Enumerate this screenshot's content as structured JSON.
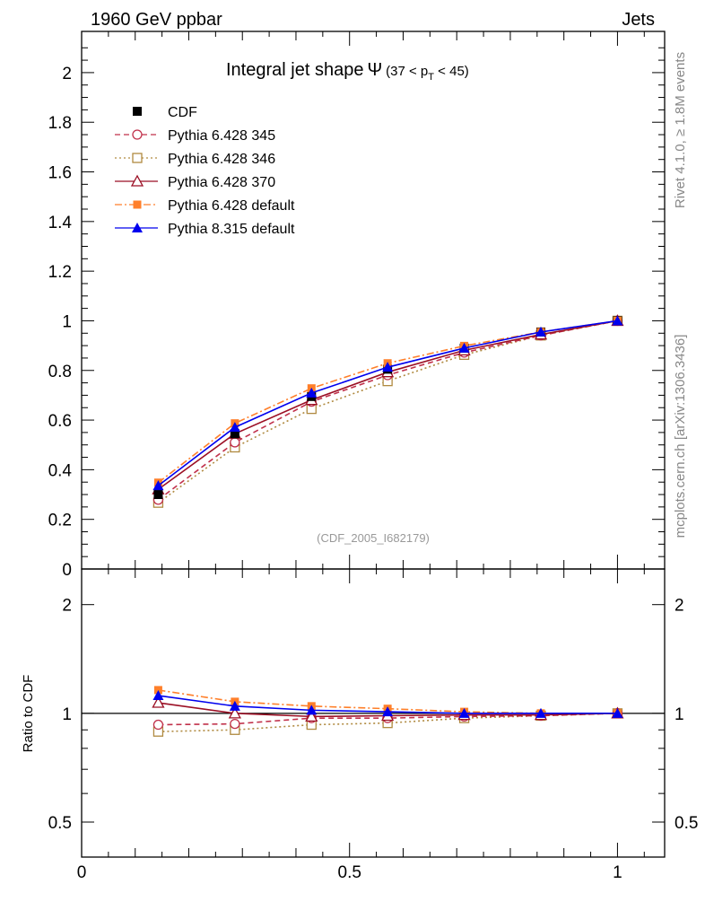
{
  "header": {
    "energy": "1960 GeV ppbar",
    "process": "Jets"
  },
  "side": {
    "rivet": "Rivet 4.1.0, ≥ 1.8M events",
    "mcplots": "mcplots.cern.ch [arXiv:1306.3436]"
  },
  "chart_data": [
    {
      "type": "line",
      "title": "Integral jet shape Ψ (37 < pT < 45)",
      "title_main": "Integral jet shape",
      "title_psi": "Ψ",
      "title_range": "(37 < p",
      "title_sub": "T",
      "title_end": " < 45)",
      "analysis": "(CDF_2005_I682179)",
      "x": [
        0.143,
        0.286,
        0.429,
        0.571,
        0.714,
        0.857,
        1.0
      ],
      "xlim": [
        0,
        1.088
      ],
      "ylim": [
        0,
        2.166
      ],
      "yticks": [
        "0",
        "0.2",
        "0.4",
        "0.6",
        "0.8",
        "1",
        "1.2",
        "1.4",
        "1.6",
        "1.8",
        "2"
      ],
      "legend_position": "top-left",
      "series": [
        {
          "name": "CDF",
          "color": "#000000",
          "marker": "filled-square",
          "dash": "none",
          "values": [
            0.3,
            0.545,
            0.695,
            0.805,
            0.89,
            0.955,
            1.0
          ]
        },
        {
          "name": "Pythia 6.428 345",
          "color": "#c0304a",
          "marker": "open-circle",
          "dash": "6,4",
          "values": [
            0.279,
            0.51,
            0.674,
            0.781,
            0.872,
            0.941,
            1.0
          ]
        },
        {
          "name": "Pythia 6.428 346",
          "color": "#b08a40",
          "marker": "open-square",
          "dash": "2,3",
          "values": [
            0.267,
            0.49,
            0.645,
            0.757,
            0.863,
            0.941,
            1.0
          ]
        },
        {
          "name": "Pythia 6.428 370",
          "color": "#9b0f24",
          "marker": "open-triangle",
          "dash": "none",
          "values": [
            0.321,
            0.545,
            0.681,
            0.793,
            0.881,
            0.945,
            1.0
          ]
        },
        {
          "name": "Pythia 6.428 default",
          "color": "#ff7f2a",
          "marker": "filled-square-small",
          "dash": "8,3,2,3",
          "values": [
            0.348,
            0.587,
            0.728,
            0.829,
            0.899,
            0.955,
            1.0
          ]
        },
        {
          "name": "Pythia 8.315 default",
          "color": "#0000ee",
          "marker": "filled-triangle",
          "dash": "none",
          "values": [
            0.336,
            0.571,
            0.709,
            0.813,
            0.89,
            0.955,
            1.0
          ]
        }
      ]
    },
    {
      "type": "line",
      "ylabel": "Ratio to CDF",
      "yscale": "log",
      "ylim": [
        0.4,
        2.51
      ],
      "xlim": [
        0,
        1.088
      ],
      "yticks": [
        "0.5",
        "1",
        "2"
      ],
      "xticks": [
        "0",
        "0.5",
        "1"
      ],
      "series": [
        {
          "name": "Pythia 6.428 345",
          "values": [
            0.93,
            0.935,
            0.97,
            0.97,
            0.98,
            0.985,
            1.0
          ]
        },
        {
          "name": "Pythia 6.428 346",
          "values": [
            0.89,
            0.9,
            0.93,
            0.94,
            0.97,
            0.985,
            1.0
          ]
        },
        {
          "name": "Pythia 6.428 370",
          "values": [
            1.07,
            1.0,
            0.98,
            0.985,
            0.99,
            0.99,
            1.0
          ]
        },
        {
          "name": "Pythia 6.428 default",
          "values": [
            1.16,
            1.077,
            1.047,
            1.03,
            1.01,
            1.0,
            1.0
          ]
        },
        {
          "name": "Pythia 8.315 default",
          "values": [
            1.12,
            1.047,
            1.02,
            1.01,
            1.0,
            1.0,
            1.0
          ]
        }
      ]
    }
  ]
}
